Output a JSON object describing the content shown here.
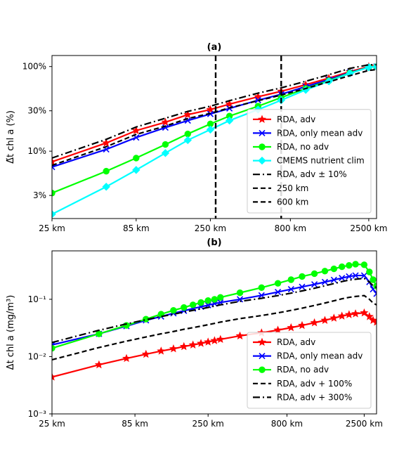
{
  "chart_data": [
    {
      "type": "line",
      "title": "(a)",
      "xlabel": "",
      "ylabel": "Δ̃t chl a (%)",
      "xscale": "log",
      "yscale": "log",
      "xlim": [
        25,
        2800
      ],
      "ylim": [
        1.6,
        135
      ],
      "xticks": [
        {
          "v": 25,
          "label": "25 km"
        },
        {
          "v": 85,
          "label": "85 km"
        },
        {
          "v": 250,
          "label": "250 km"
        },
        {
          "v": 800,
          "label": "800 km"
        },
        {
          "v": 2500,
          "label": "2500 km"
        }
      ],
      "yticks": [
        {
          "v": 3,
          "label": "3%"
        },
        {
          "v": 10,
          "label": "10%"
        },
        {
          "v": 30,
          "label": "30%"
        },
        {
          "v": 100,
          "label": "100%"
        }
      ],
      "vlines": [
        270,
        700
      ],
      "legend_position": "lower-right",
      "series": [
        {
          "name": "RDA, adv",
          "color": "#ff0000",
          "dash": "",
          "marker": "star",
          "x": [
            25,
            55,
            85,
            130,
            180,
            250,
            330,
            500,
            700,
            1000,
            1400,
            1900,
            2500,
            2800
          ],
          "y": [
            7.5,
            12.5,
            17.5,
            22,
            27,
            31,
            36,
            44,
            51,
            61,
            73,
            87,
            100,
            100
          ]
        },
        {
          "name": "RDA, only mean adv",
          "color": "#0000ff",
          "dash": "",
          "marker": "x",
          "x": [
            25,
            55,
            85,
            130,
            180,
            250,
            330,
            500,
            700,
            1000,
            1400,
            1900,
            2500,
            2800
          ],
          "y": [
            6.5,
            10.5,
            14.5,
            19,
            23,
            27.5,
            32,
            40,
            47,
            58,
            70,
            85,
            98,
            100
          ]
        },
        {
          "name": "RDA, no adv",
          "color": "#00ff00",
          "dash": "",
          "marker": "circle",
          "x": [
            25,
            55,
            85,
            130,
            180,
            250,
            330,
            500,
            700,
            1000,
            1400,
            1900,
            2500,
            2800
          ],
          "y": [
            3.2,
            5.8,
            8.3,
            12,
            16,
            21,
            26,
            34,
            43,
            55,
            68,
            84,
            98,
            100
          ]
        },
        {
          "name": "CMEMS nutrient clim",
          "color": "#00ffff",
          "dash": "",
          "marker": "diamond",
          "x": [
            25,
            55,
            85,
            130,
            180,
            250,
            330,
            500,
            700,
            1000,
            1400,
            1900,
            2500,
            2800
          ],
          "y": [
            1.8,
            3.8,
            6,
            9.5,
            13.5,
            18,
            23,
            31,
            40,
            53,
            67,
            83,
            98,
            100
          ]
        },
        {
          "name": "RDA, adv ± 10%",
          "color": "#000000",
          "dash": "10,4,2,4",
          "marker": "",
          "x": [
            25,
            55,
            85,
            130,
            180,
            250,
            330,
            500,
            700,
            1000,
            1400,
            1900,
            2500,
            2800
          ],
          "y": [
            8.3,
            13.8,
            19.3,
            24.5,
            29.5,
            34,
            39.5,
            48.5,
            56,
            67,
            80,
            95,
            105,
            105
          ]
        },
        {
          "name": "250 km",
          "color": "#000000",
          "dash": "7,4",
          "marker": "",
          "x": [
            25,
            55,
            85,
            130,
            180,
            250,
            330,
            500,
            700,
            1000,
            1400,
            1900,
            2500,
            2800
          ],
          "y": [
            6.8,
            11.3,
            15.8,
            19.8,
            24.3,
            28,
            32.5,
            39.5,
            46,
            55,
            66,
            78,
            90,
            92
          ]
        },
        {
          "name": "600 km",
          "color": "#000000",
          "dash": "7,4",
          "marker": "",
          "x": [],
          "y": []
        }
      ]
    },
    {
      "type": "line",
      "title": "(b)",
      "xlabel": "",
      "ylabel": "Δt chl a (mg/m³)",
      "xscale": "log",
      "yscale": "log",
      "xlim": [
        25,
        3000
      ],
      "ylim": [
        0.001,
        0.7
      ],
      "xticks": [
        {
          "v": 25,
          "label": "25 km"
        },
        {
          "v": 85,
          "label": "85 km"
        },
        {
          "v": 250,
          "label": "250 km"
        },
        {
          "v": 800,
          "label": "800 km"
        },
        {
          "v": 2500,
          "label": "2500 km"
        }
      ],
      "yticks": [
        {
          "v": 0.001,
          "label": "10⁻³"
        },
        {
          "v": 0.01,
          "label": "10⁻²"
        },
        {
          "v": 0.1,
          "label": "10⁻¹"
        }
      ],
      "legend_position": "lower-right",
      "series": [
        {
          "name": "RDA, adv",
          "color": "#ff0000",
          "dash": "",
          "marker": "star",
          "x": [
            25,
            50,
            75,
            100,
            125,
            150,
            175,
            200,
            225,
            250,
            275,
            300,
            400,
            550,
            700,
            850,
            1000,
            1200,
            1400,
            1600,
            1800,
            2000,
            2200,
            2500,
            2700,
            2850,
            3000
          ],
          "y": [
            0.0044,
            0.0072,
            0.0093,
            0.011,
            0.0125,
            0.0137,
            0.015,
            0.016,
            0.017,
            0.018,
            0.019,
            0.02,
            0.023,
            0.026,
            0.029,
            0.032,
            0.035,
            0.039,
            0.043,
            0.047,
            0.051,
            0.054,
            0.056,
            0.058,
            0.05,
            0.043,
            0.04
          ]
        },
        {
          "name": "RDA, only mean adv",
          "color": "#0000ff",
          "dash": "",
          "marker": "x",
          "x": [
            25,
            50,
            75,
            100,
            125,
            150,
            175,
            200,
            225,
            250,
            275,
            300,
            400,
            550,
            700,
            850,
            1000,
            1200,
            1400,
            1600,
            1800,
            2000,
            2200,
            2500,
            2700,
            2850,
            3000
          ],
          "y": [
            0.016,
            0.025,
            0.034,
            0.043,
            0.05,
            0.057,
            0.063,
            0.069,
            0.074,
            0.079,
            0.084,
            0.088,
            0.1,
            0.117,
            0.134,
            0.15,
            0.165,
            0.182,
            0.2,
            0.218,
            0.235,
            0.25,
            0.26,
            0.26,
            0.2,
            0.15,
            0.125
          ]
        },
        {
          "name": "RDA, no adv",
          "color": "#00ff00",
          "dash": "",
          "marker": "circle",
          "x": [
            25,
            50,
            75,
            100,
            125,
            150,
            175,
            200,
            225,
            250,
            275,
            300,
            400,
            550,
            700,
            850,
            1000,
            1200,
            1400,
            1600,
            1800,
            2000,
            2200,
            2500,
            2700,
            2850,
            3000
          ],
          "y": [
            0.014,
            0.025,
            0.035,
            0.045,
            0.055,
            0.064,
            0.072,
            0.08,
            0.088,
            0.095,
            0.1,
            0.108,
            0.13,
            0.16,
            0.19,
            0.22,
            0.25,
            0.28,
            0.31,
            0.34,
            0.37,
            0.39,
            0.41,
            0.4,
            0.3,
            0.22,
            0.17
          ]
        },
        {
          "name": "RDA, adv + 100%",
          "color": "#000000",
          "dash": "7,4",
          "marker": "",
          "x": [
            25,
            50,
            75,
            100,
            125,
            150,
            175,
            200,
            225,
            250,
            275,
            300,
            400,
            550,
            700,
            850,
            1000,
            1200,
            1400,
            1600,
            1800,
            2000,
            2200,
            2500,
            2700,
            2850,
            3000
          ],
          "y": [
            0.0088,
            0.0144,
            0.0186,
            0.022,
            0.025,
            0.0274,
            0.03,
            0.032,
            0.034,
            0.036,
            0.038,
            0.04,
            0.046,
            0.052,
            0.058,
            0.064,
            0.07,
            0.078,
            0.086,
            0.094,
            0.102,
            0.108,
            0.112,
            0.116,
            0.1,
            0.086,
            0.08
          ]
        },
        {
          "name": "RDA, adv + 300%",
          "color": "#000000",
          "dash": "10,4,2,4",
          "marker": "",
          "x": [
            25,
            50,
            75,
            100,
            125,
            150,
            175,
            200,
            225,
            250,
            275,
            300,
            400,
            550,
            700,
            850,
            1000,
            1200,
            1400,
            1600,
            1800,
            2000,
            2200,
            2500,
            2700,
            2850,
            3000
          ],
          "y": [
            0.0176,
            0.0288,
            0.0372,
            0.044,
            0.05,
            0.0548,
            0.06,
            0.064,
            0.068,
            0.072,
            0.076,
            0.08,
            0.092,
            0.104,
            0.116,
            0.128,
            0.14,
            0.156,
            0.172,
            0.188,
            0.204,
            0.216,
            0.224,
            0.232,
            0.2,
            0.172,
            0.16
          ]
        }
      ]
    }
  ]
}
